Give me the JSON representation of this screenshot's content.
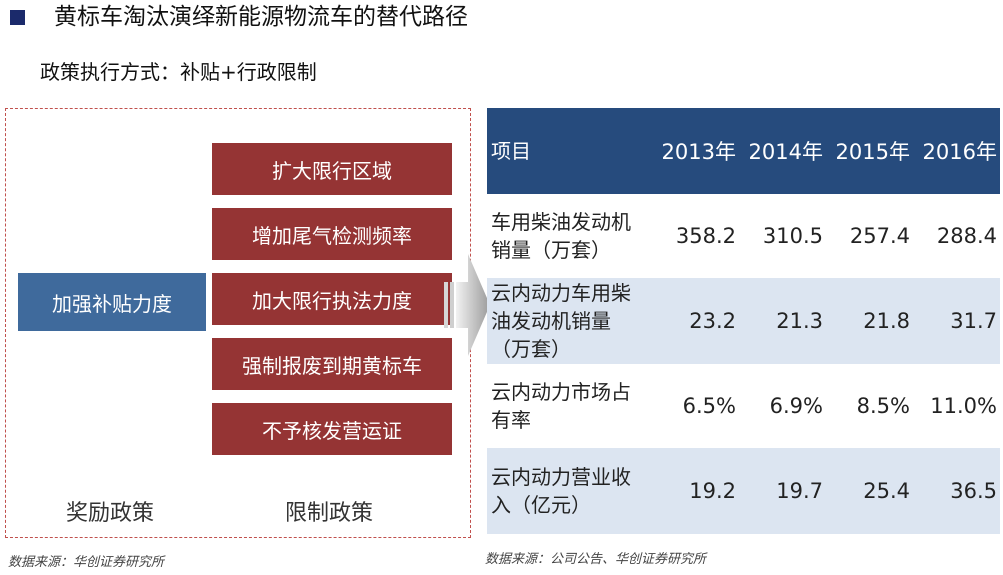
{
  "title": "黄标车淘汰演绎新能源物流车的替代路径",
  "subtitle": "政策执行方式：补贴+行政限制",
  "left_panel": {
    "incentive_box": "加强补贴力度",
    "restrict_boxes": [
      "扩大限行区域",
      "增加尾气检测频率",
      "加大限行执法力度",
      "强制报废到期黄标车",
      "不予核发营运证"
    ],
    "label_incentive": "奖励政策",
    "label_restrict": "限制政策",
    "source": "数据来源：华创证券研究所"
  },
  "table": {
    "header": {
      "label": "项目",
      "years": [
        "2013年",
        "2014年",
        "2015年",
        "2016年"
      ]
    },
    "rows": [
      {
        "label": "车用柴油发动机销量（万套）",
        "values": [
          "358.2",
          "310.5",
          "257.4",
          "288.4"
        ]
      },
      {
        "label": "云内动力车用柴油发动机销量（万套）",
        "values": [
          "23.2",
          "21.3",
          "21.8",
          "31.7"
        ]
      },
      {
        "label": "云内动力市场占有率",
        "values": [
          "6.5%",
          "6.9%",
          "8.5%",
          "11.0%"
        ]
      },
      {
        "label": "云内动力营业收入（亿元）",
        "values": [
          "19.2",
          "19.7",
          "25.4",
          "36.5"
        ]
      }
    ],
    "source": "数据来源：公司公告、华创证券研究所"
  },
  "colors": {
    "bullet": "#1b2a6b",
    "incentive": "#3f6a9c",
    "restrict": "#953434",
    "table_header": "#264b7d",
    "table_shade": "#dce5f1",
    "frame": "#c0504d"
  }
}
